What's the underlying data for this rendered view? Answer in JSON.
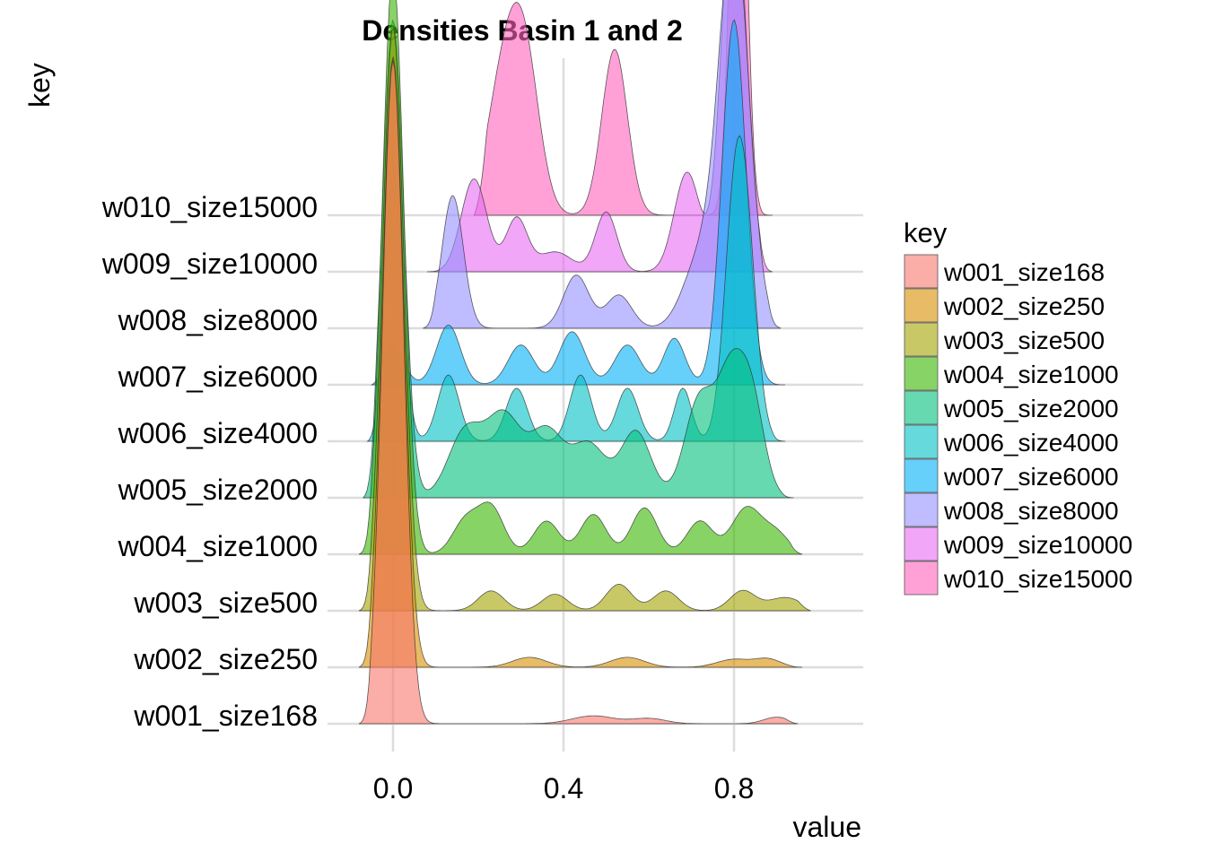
{
  "chart_data": {
    "type": "ridgeline",
    "title": "Densities Basin 1 and 2",
    "xlabel": "value",
    "ylabel": "key",
    "xlim": [
      -0.09,
      1.1
    ],
    "x_ticks": [
      0.0,
      0.4,
      0.8
    ],
    "x_tick_labels": [
      "0.0",
      "0.4",
      "0.8"
    ],
    "grid": true,
    "legend_title": "key",
    "legend_position": "right",
    "series": [
      {
        "name": "w001_size168",
        "color": "#F8766D",
        "range": [
          -0.08,
          0.95
        ],
        "peaks": [
          [
            0.0,
            1.0,
            0.025
          ],
          [
            0.47,
            0.012,
            0.05
          ],
          [
            0.6,
            0.008,
            0.04
          ],
          [
            0.9,
            0.01,
            0.03
          ]
        ]
      },
      {
        "name": "w002_size250",
        "color": "#D89000",
        "range": [
          -0.08,
          0.96
        ],
        "peaks": [
          [
            0.0,
            0.92,
            0.025
          ],
          [
            0.32,
            0.015,
            0.04
          ],
          [
            0.55,
            0.015,
            0.04
          ],
          [
            0.8,
            0.012,
            0.04
          ],
          [
            0.88,
            0.012,
            0.03
          ]
        ]
      },
      {
        "name": "w003_size500",
        "color": "#A3A500",
        "range": [
          -0.08,
          0.98
        ],
        "peaks": [
          [
            0.0,
            0.88,
            0.025
          ],
          [
            0.23,
            0.03,
            0.03
          ],
          [
            0.38,
            0.025,
            0.03
          ],
          [
            0.53,
            0.04,
            0.03
          ],
          [
            0.64,
            0.03,
            0.03
          ],
          [
            0.82,
            0.03,
            0.03
          ],
          [
            0.92,
            0.02,
            0.04
          ]
        ]
      },
      {
        "name": "w004_size1000",
        "color": "#39B600",
        "range": [
          -0.08,
          0.96
        ],
        "peaks": [
          [
            0.0,
            0.88,
            0.025
          ],
          [
            0.17,
            0.05,
            0.03
          ],
          [
            0.23,
            0.07,
            0.03
          ],
          [
            0.36,
            0.05,
            0.03
          ],
          [
            0.47,
            0.06,
            0.03
          ],
          [
            0.59,
            0.07,
            0.03
          ],
          [
            0.72,
            0.05,
            0.03
          ],
          [
            0.83,
            0.07,
            0.035
          ],
          [
            0.9,
            0.03,
            0.03
          ]
        ]
      },
      {
        "name": "w005_size2000",
        "color": "#00BF7D",
        "range": [
          -0.07,
          0.94
        ],
        "peaks": [
          [
            0.0,
            0.72,
            0.025
          ],
          [
            0.17,
            0.1,
            0.04
          ],
          [
            0.26,
            0.12,
            0.04
          ],
          [
            0.36,
            0.1,
            0.04
          ],
          [
            0.46,
            0.08,
            0.04
          ],
          [
            0.57,
            0.1,
            0.035
          ],
          [
            0.72,
            0.15,
            0.035
          ],
          [
            0.79,
            0.16,
            0.03
          ],
          [
            0.84,
            0.15,
            0.03
          ]
        ]
      },
      {
        "name": "w006_size4000",
        "color": "#00BFC4",
        "range": [
          -0.06,
          0.92
        ],
        "peaks": [
          [
            0.0,
            0.4,
            0.022
          ],
          [
            0.13,
            0.1,
            0.025
          ],
          [
            0.29,
            0.08,
            0.025
          ],
          [
            0.44,
            0.1,
            0.025
          ],
          [
            0.55,
            0.08,
            0.025
          ],
          [
            0.68,
            0.08,
            0.02
          ],
          [
            0.8,
            0.3,
            0.025
          ],
          [
            0.83,
            0.25,
            0.025
          ]
        ]
      },
      {
        "name": "w007_size6000",
        "color": "#00B0F6",
        "range": [
          -0.05,
          0.92
        ],
        "peaks": [
          [
            0.0,
            0.06,
            0.025
          ],
          [
            0.13,
            0.09,
            0.028
          ],
          [
            0.3,
            0.06,
            0.03
          ],
          [
            0.42,
            0.08,
            0.03
          ],
          [
            0.55,
            0.06,
            0.03
          ],
          [
            0.66,
            0.07,
            0.025
          ],
          [
            0.8,
            0.55,
            0.028
          ]
        ]
      },
      {
        "name": "w008_size8000",
        "color": "#9590FF",
        "range": [
          0.07,
          0.91
        ],
        "peaks": [
          [
            0.14,
            0.2,
            0.025
          ],
          [
            0.43,
            0.08,
            0.03
          ],
          [
            0.53,
            0.05,
            0.03
          ],
          [
            0.72,
            0.1,
            0.04
          ],
          [
            0.8,
            0.6,
            0.035
          ]
        ]
      },
      {
        "name": "w009_size10000",
        "color": "#E76BF3",
        "range": [
          0.08,
          0.89
        ],
        "peaks": [
          [
            0.19,
            0.14,
            0.03
          ],
          [
            0.29,
            0.08,
            0.025
          ],
          [
            0.38,
            0.03,
            0.04
          ],
          [
            0.5,
            0.09,
            0.025
          ],
          [
            0.69,
            0.15,
            0.03
          ],
          [
            0.8,
            0.6,
            0.028
          ]
        ]
      },
      {
        "name": "w010_size15000",
        "color": "#FF62BC",
        "range": [
          0.19,
          0.89
        ],
        "peaks": [
          [
            0.26,
            0.2,
            0.04
          ],
          [
            0.31,
            0.2,
            0.035
          ],
          [
            0.52,
            0.25,
            0.03
          ],
          [
            0.81,
            0.8,
            0.018
          ]
        ]
      }
    ]
  }
}
